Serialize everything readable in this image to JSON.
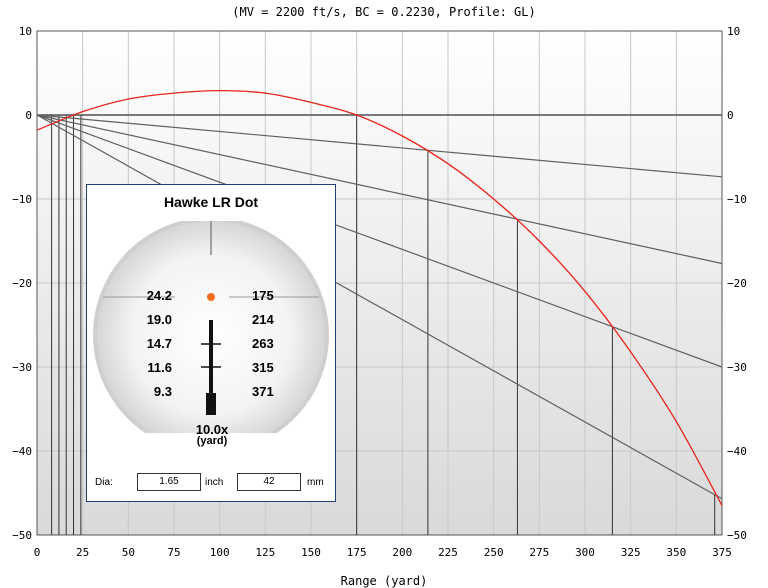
{
  "chart_data": {
    "type": "line",
    "subtitle": "(MV = 2200 ft/s, BC = 0.2230, Profile: GL)",
    "xlabel": "Range (yard)",
    "ylabel": "",
    "xlim": [
      0,
      375
    ],
    "ylim": [
      -50,
      10
    ],
    "x_ticks": [
      "0",
      "25",
      "50",
      "75",
      "100",
      "125",
      "150",
      "175",
      "200",
      "225",
      "250",
      "275",
      "300",
      "325",
      "350",
      "375"
    ],
    "y_ticks": [
      "10",
      "0",
      "-10",
      "-20",
      "-30",
      "-40",
      "-50"
    ],
    "grid": true,
    "trajectory": {
      "color": "#e8231a",
      "x": [
        0,
        25,
        50,
        75,
        100,
        125,
        150,
        175,
        200,
        225,
        250,
        275,
        300,
        325,
        350,
        375
      ],
      "y": [
        -1.8,
        0.4,
        1.9,
        2.6,
        2.9,
        2.6,
        1.5,
        0.0,
        -2.5,
        -5.8,
        -10.0,
        -15.0,
        -21.0,
        -28.2,
        -36.5,
        -46.5
      ]
    },
    "holdover_lines": {
      "color": "#606060",
      "targets": [
        {
          "x": 175,
          "y": 0
        },
        {
          "x": 214,
          "y": -4.2
        },
        {
          "x": 263,
          "y": -12.4
        },
        {
          "x": 315,
          "y": -25.2
        },
        {
          "x": 371,
          "y": -45.2
        }
      ]
    },
    "range_markers": [
      8,
      12,
      16,
      20,
      24,
      175,
      214,
      263,
      315,
      371
    ]
  },
  "panel": {
    "title": "Hawke LR Dot",
    "left_values": [
      "24.2",
      "19.0",
      "14.7",
      "11.6",
      "9.3"
    ],
    "right_values": [
      "175",
      "214",
      "263",
      "315",
      "371"
    ],
    "dot_color": "#f07020",
    "magnification": "10.0x",
    "mag_unit": "(yard)",
    "dia_label": "Dia:",
    "dia_inch": "1.65",
    "inch_label": "inch",
    "dia_mm": "42",
    "mm_label": "mm"
  }
}
